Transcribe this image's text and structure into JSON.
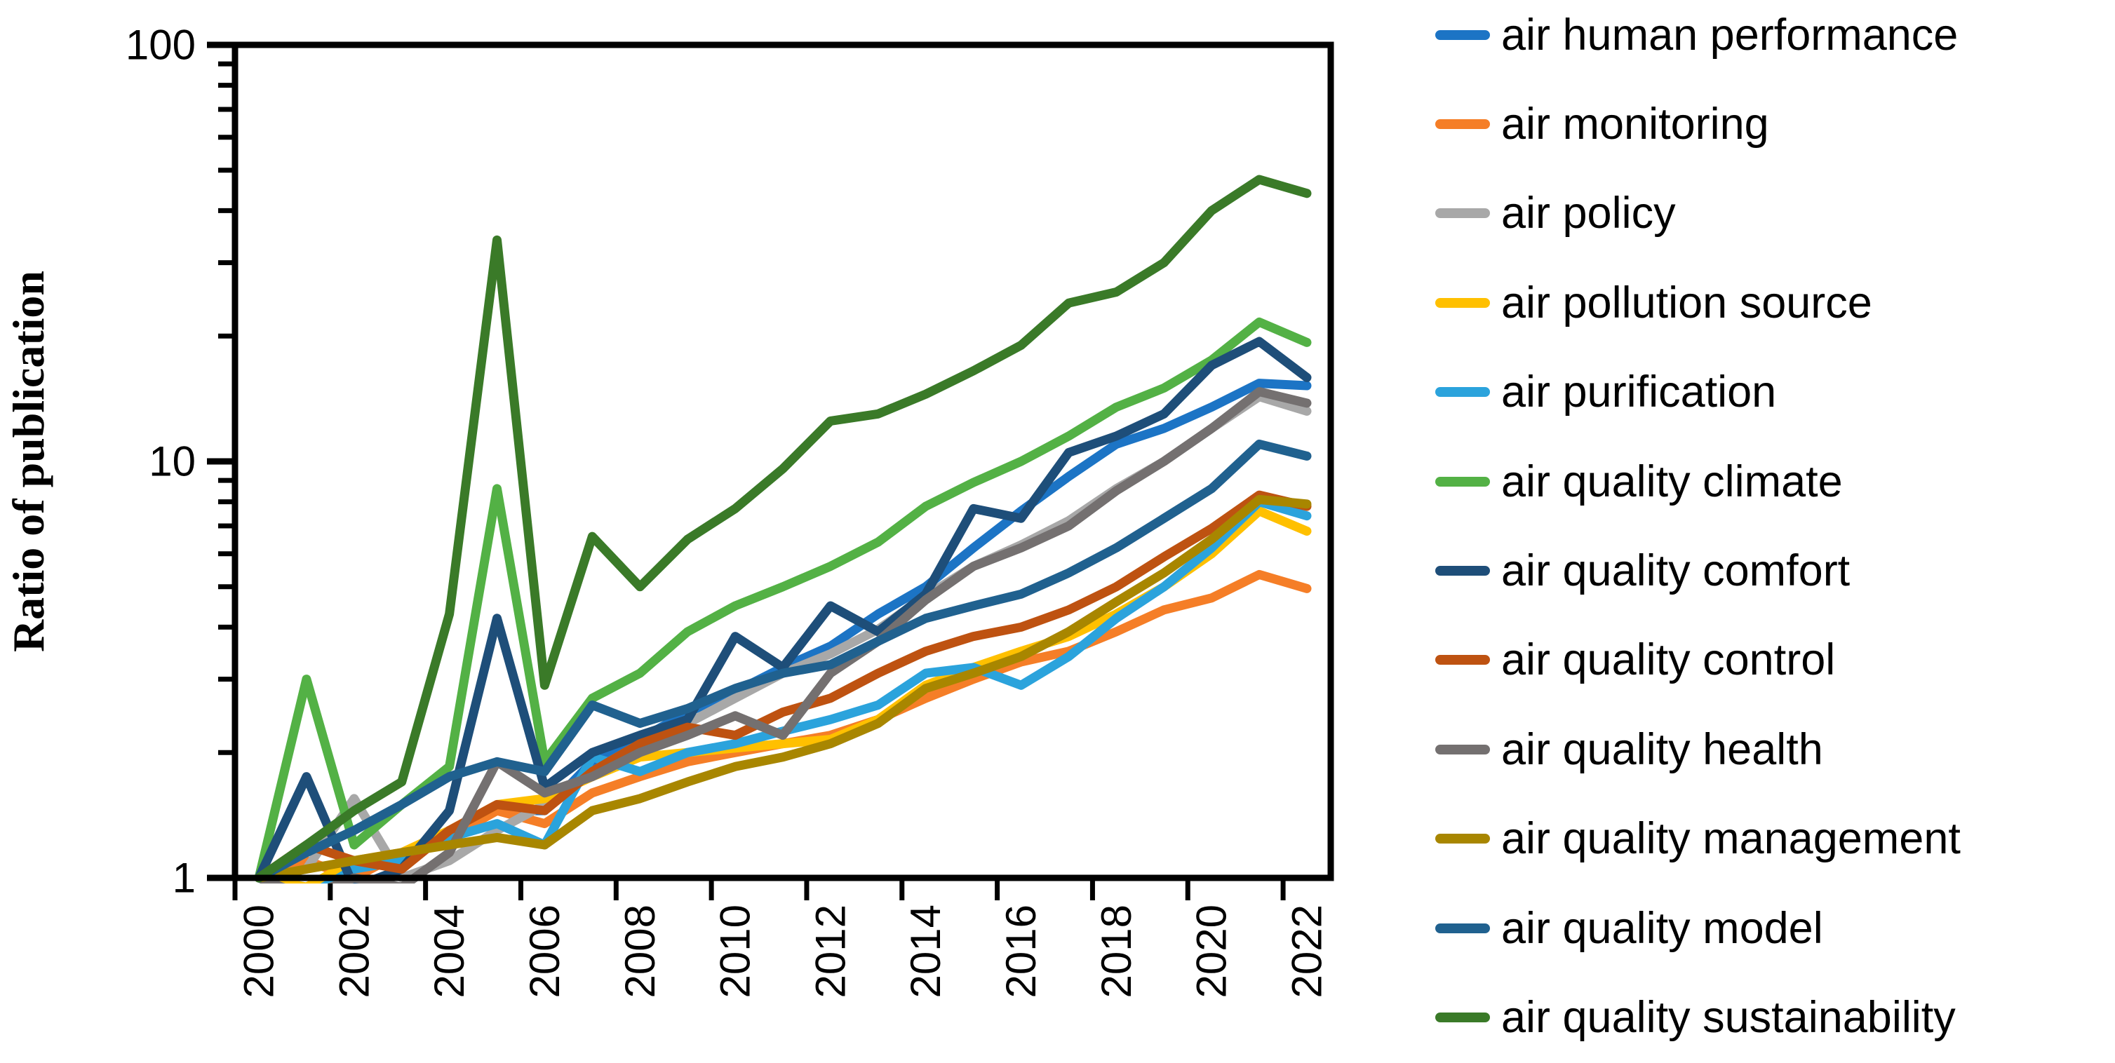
{
  "chart_data": {
    "type": "line",
    "title": "",
    "xlabel": "",
    "ylabel": "Ratio of publication",
    "y_scale": "log",
    "ylim": [
      1,
      100
    ],
    "y_major_ticks": [
      1,
      10,
      100
    ],
    "y_tick_labels": [
      "1",
      "10",
      "100"
    ],
    "grid": false,
    "legend_position": "right",
    "background": "#ffffff",
    "frame_color": "#000000",
    "x": [
      2000,
      2001,
      2002,
      2003,
      2004,
      2005,
      2006,
      2007,
      2008,
      2009,
      2010,
      2011,
      2012,
      2013,
      2014,
      2015,
      2016,
      2017,
      2018,
      2019,
      2020,
      2021,
      2022
    ],
    "x_tick_labels": [
      "2000",
      "2002",
      "2004",
      "2006",
      "2008",
      "2010",
      "2012",
      "2014",
      "2016",
      "2018",
      "2020",
      "2022"
    ],
    "series": [
      {
        "name": "air human performance",
        "color": "#1C74C5",
        "values": [
          1,
          0.95,
          1.05,
          1.1,
          1.3,
          1.45,
          1.45,
          1.9,
          2.15,
          2.5,
          2.8,
          3.2,
          3.6,
          4.3,
          5.0,
          6.2,
          7.6,
          9.2,
          11.0,
          12.0,
          13.5,
          15.4,
          15.2
        ]
      },
      {
        "name": "air monitoring",
        "color": "#F57E27",
        "values": [
          1,
          1.1,
          1.0,
          1.15,
          1.25,
          1.45,
          1.35,
          1.6,
          1.75,
          1.9,
          2.0,
          2.1,
          2.2,
          2.4,
          2.7,
          3.0,
          3.3,
          3.5,
          3.9,
          4.4,
          4.7,
          5.35,
          4.95
        ]
      },
      {
        "name": "air policy",
        "color": "#A8A8A8",
        "values": [
          1,
          1.05,
          1.55,
          1.0,
          1.1,
          1.3,
          1.5,
          1.8,
          2.1,
          2.35,
          2.7,
          3.1,
          3.45,
          3.95,
          4.75,
          5.6,
          6.3,
          7.2,
          8.6,
          10.0,
          12.0,
          14.3,
          13.2
        ]
      },
      {
        "name": "air pollution source",
        "color": "#FFC000",
        "values": [
          1,
          0.95,
          1.1,
          1.15,
          1.3,
          1.5,
          1.55,
          1.75,
          1.95,
          2.0,
          2.05,
          2.1,
          2.15,
          2.4,
          2.9,
          3.2,
          3.5,
          3.8,
          4.3,
          5.0,
          6.0,
          7.6,
          6.8
        ]
      },
      {
        "name": "air purification",
        "color": "#2BA3DC",
        "values": [
          1,
          0.9,
          1.05,
          1.1,
          1.25,
          1.35,
          1.2,
          1.95,
          1.8,
          2.0,
          2.1,
          2.25,
          2.4,
          2.6,
          3.1,
          3.2,
          2.9,
          3.4,
          4.2,
          5.0,
          6.2,
          8.0,
          7.4
        ]
      },
      {
        "name": "air quality climate",
        "color": "#53B145",
        "values": [
          1,
          3.0,
          1.2,
          1.5,
          1.85,
          8.6,
          1.9,
          2.7,
          3.1,
          3.9,
          4.5,
          5.0,
          5.6,
          6.4,
          7.8,
          8.9,
          10.0,
          11.5,
          13.5,
          15.0,
          17.5,
          21.6,
          19.3
        ]
      },
      {
        "name": "air quality comfort",
        "color": "#1E4E79",
        "values": [
          1,
          1.75,
          0.95,
          1.05,
          1.45,
          4.2,
          1.65,
          2.0,
          2.2,
          2.4,
          3.8,
          3.2,
          4.5,
          3.9,
          4.8,
          7.7,
          7.3,
          10.5,
          11.5,
          13.0,
          17.0,
          19.4,
          15.9
        ]
      },
      {
        "name": "air quality control",
        "color": "#BE5211",
        "values": [
          1,
          1.2,
          1.1,
          1.05,
          1.3,
          1.5,
          1.45,
          1.8,
          2.1,
          2.3,
          2.2,
          2.5,
          2.7,
          3.1,
          3.5,
          3.8,
          4.0,
          4.4,
          5.0,
          5.9,
          6.9,
          8.3,
          7.8
        ]
      },
      {
        "name": "air quality health",
        "color": "#747070",
        "values": [
          1,
          0.9,
          1.0,
          0.95,
          1.15,
          1.9,
          1.6,
          1.75,
          2.0,
          2.2,
          2.45,
          2.2,
          3.1,
          3.7,
          4.65,
          5.6,
          6.2,
          7.0,
          8.5,
          10.0,
          12.0,
          14.7,
          13.8
        ]
      },
      {
        "name": "air quality management",
        "color": "#A88600",
        "values": [
          1,
          1.05,
          1.1,
          1.15,
          1.2,
          1.25,
          1.2,
          1.45,
          1.55,
          1.7,
          1.85,
          1.95,
          2.1,
          2.35,
          2.85,
          3.1,
          3.4,
          3.9,
          4.6,
          5.4,
          6.5,
          8.1,
          7.9
        ]
      },
      {
        "name": "air quality model",
        "color": "#20618F",
        "values": [
          1,
          1.15,
          1.3,
          1.5,
          1.75,
          1.9,
          1.8,
          2.6,
          2.35,
          2.55,
          2.85,
          3.1,
          3.25,
          3.7,
          4.2,
          4.5,
          4.8,
          5.4,
          6.2,
          7.3,
          8.6,
          11.0,
          10.3
        ]
      },
      {
        "name": "air quality sustainability",
        "color": "#3A7A28",
        "values": [
          1,
          1.2,
          1.45,
          1.7,
          4.3,
          34,
          2.9,
          6.6,
          5.0,
          6.5,
          7.7,
          9.6,
          12.5,
          13.0,
          14.5,
          16.5,
          19.0,
          24.0,
          25.5,
          30.0,
          40.0,
          47.5,
          44.0
        ]
      }
    ]
  }
}
